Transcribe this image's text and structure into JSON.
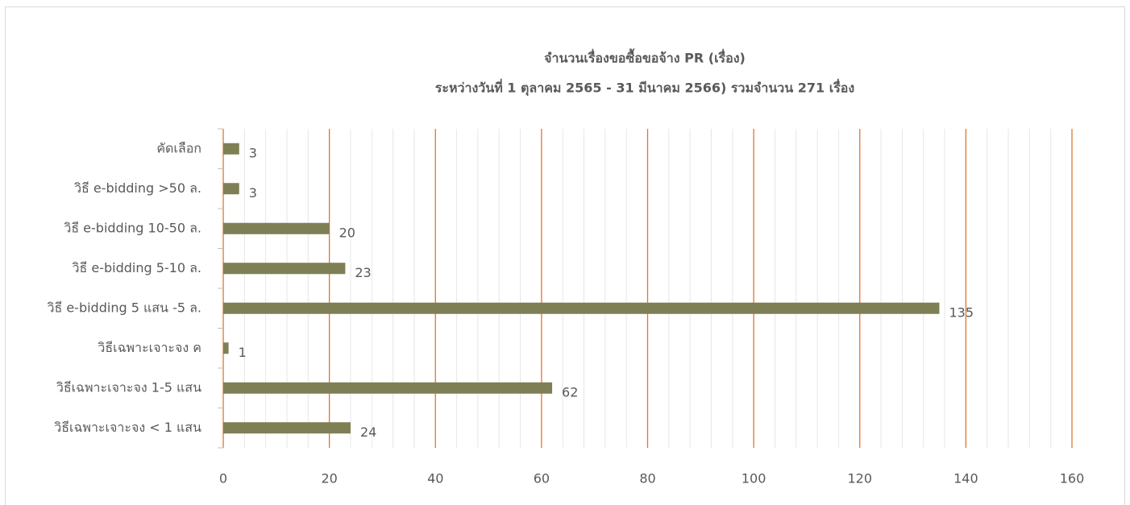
{
  "chart_data": {
    "type": "barh",
    "title": "จำนวนเรื่องขอซื้อขอจ้าง PR  (เรื่อง)",
    "subtitle": "ระหว่างวันที่ 1 ตุลาคม 2565 - 31 มีนาคม 2566) รวมจำนวน 271 เรื่อง",
    "categories": [
      "คัดเลือก",
      "วิธี e-bidding >50 ล.",
      "วิธี e-bidding 10-50 ล.",
      "วิธี e-bidding  5-10 ล.",
      "วิธี e-bidding  5 แสน -5 ล.",
      "วิธีเฉพาะเจาะจง ค",
      "วิธีเฉพาะเจาะจง 1-5  แสน",
      "วิธีเฉพาะเจาะจง < 1 แสน"
    ],
    "values": [
      3,
      3,
      20,
      23,
      135,
      1,
      62,
      24
    ],
    "color": "#7f7f55",
    "grid_color": "#d9782f",
    "xlim": [
      0,
      160
    ],
    "xticks": [
      0,
      20,
      40,
      60,
      80,
      100,
      120,
      140,
      160
    ],
    "grid": true,
    "minor_grid": true
  }
}
